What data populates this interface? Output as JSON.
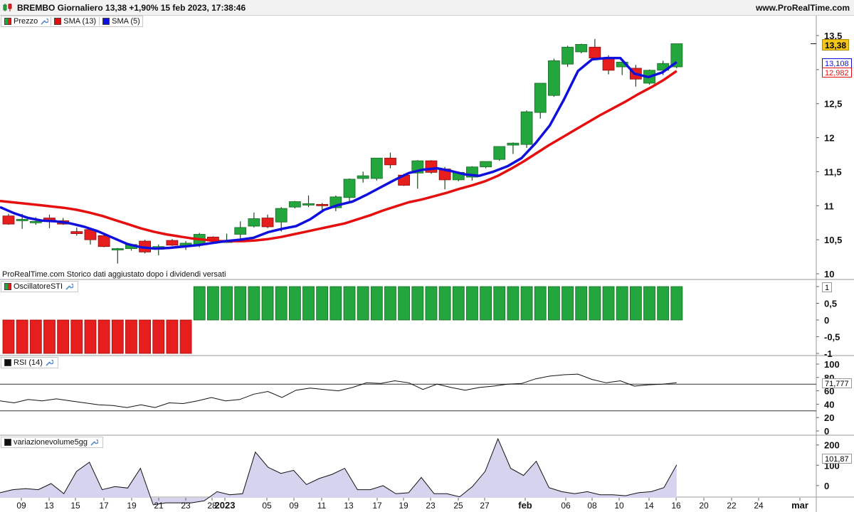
{
  "header": {
    "title": "BREMBO Giornaliero 13,38 +1,90% 15 feb 2023, 17:38:46",
    "site": "www.ProRealTime.com"
  },
  "note": "ProRealTime.com  Storico dati aggiustato dopo i dividendi versati",
  "legend": {
    "price": "Prezzo",
    "sma13": "SMA (13)",
    "sma5": "SMA (5)",
    "sti": "OscillatoreSTI",
    "rsi": "RSI (14)",
    "vol": "variazionevolume5gg"
  },
  "colors": {
    "up": "#22a63d",
    "down": "#e61e1e",
    "sma13": "#e60f0f",
    "sma5": "#1010dd",
    "wrench": "#5a8cc8"
  },
  "badges": {
    "last_price": "13,38",
    "sma5": "13,108",
    "sma13": "12,982",
    "sti": "1",
    "rsi": "71,777",
    "vol": "101,87"
  },
  "chart_data": [
    {
      "type": "candlestick",
      "title": "Prezzo",
      "ylim": [
        10,
        13.5
      ],
      "yticks": [
        "13,5",
        "13",
        "12,5",
        "12",
        "11,5",
        "11",
        "10,5",
        "10"
      ],
      "xticks": [
        "09",
        "13",
        "15",
        "17",
        "19",
        "21",
        "23",
        "28",
        "2023",
        "05",
        "09",
        "11",
        "13",
        "17",
        "19",
        "23",
        "25",
        "27",
        "feb",
        "06",
        "08",
        "10",
        "14",
        "16",
        "20",
        "22",
        "24",
        "mar"
      ],
      "candles": [
        {
          "o": 10.85,
          "h": 10.88,
          "l": 10.72,
          "c": 10.73
        },
        {
          "o": 10.78,
          "h": 10.88,
          "l": 10.66,
          "c": 10.8
        },
        {
          "o": 10.75,
          "h": 10.83,
          "l": 10.72,
          "c": 10.77
        },
        {
          "o": 10.82,
          "h": 10.87,
          "l": 10.67,
          "c": 10.78
        },
        {
          "o": 10.78,
          "h": 10.82,
          "l": 10.72,
          "c": 10.73
        },
        {
          "o": 10.62,
          "h": 10.68,
          "l": 10.56,
          "c": 10.59
        },
        {
          "o": 10.65,
          "h": 10.66,
          "l": 10.43,
          "c": 10.5
        },
        {
          "o": 10.56,
          "h": 10.58,
          "l": 10.39,
          "c": 10.4
        },
        {
          "o": 10.37,
          "h": 10.38,
          "l": 10.15,
          "c": 10.37
        },
        {
          "o": 10.37,
          "h": 10.44,
          "l": 10.34,
          "c": 10.43
        },
        {
          "o": 10.48,
          "h": 10.5,
          "l": 10.3,
          "c": 10.32
        },
        {
          "o": 10.36,
          "h": 10.43,
          "l": 10.27,
          "c": 10.4
        },
        {
          "o": 10.49,
          "h": 10.51,
          "l": 10.41,
          "c": 10.42
        },
        {
          "o": 10.4,
          "h": 10.48,
          "l": 10.35,
          "c": 10.45
        },
        {
          "o": 10.43,
          "h": 10.6,
          "l": 10.39,
          "c": 10.58
        },
        {
          "o": 10.54,
          "h": 10.55,
          "l": 10.47,
          "c": 10.48
        },
        {
          "o": 10.48,
          "h": 10.59,
          "l": 10.46,
          "c": 10.48
        },
        {
          "o": 10.58,
          "h": 10.77,
          "l": 10.51,
          "c": 10.68
        },
        {
          "o": 10.7,
          "h": 10.9,
          "l": 10.68,
          "c": 10.81
        },
        {
          "o": 10.82,
          "h": 10.87,
          "l": 10.67,
          "c": 10.69
        },
        {
          "o": 10.76,
          "h": 10.98,
          "l": 10.62,
          "c": 10.96
        },
        {
          "o": 10.98,
          "h": 11.07,
          "l": 10.96,
          "c": 11.06
        },
        {
          "o": 11.03,
          "h": 11.15,
          "l": 10.98,
          "c": 11.03
        },
        {
          "o": 11.02,
          "h": 11.04,
          "l": 10.94,
          "c": 11.0
        },
        {
          "o": 10.97,
          "h": 11.15,
          "l": 10.92,
          "c": 11.13
        },
        {
          "o": 11.12,
          "h": 11.4,
          "l": 11.05,
          "c": 11.39
        },
        {
          "o": 11.4,
          "h": 11.5,
          "l": 11.34,
          "c": 11.44
        },
        {
          "o": 11.4,
          "h": 11.7,
          "l": 11.37,
          "c": 11.7
        },
        {
          "o": 11.7,
          "h": 11.78,
          "l": 11.55,
          "c": 11.6
        },
        {
          "o": 11.45,
          "h": 11.47,
          "l": 11.29,
          "c": 11.3
        },
        {
          "o": 11.48,
          "h": 11.67,
          "l": 11.25,
          "c": 11.66
        },
        {
          "o": 11.66,
          "h": 11.67,
          "l": 11.47,
          "c": 11.49
        },
        {
          "o": 11.54,
          "h": 11.57,
          "l": 11.24,
          "c": 11.38
        },
        {
          "o": 11.38,
          "h": 11.5,
          "l": 11.36,
          "c": 11.49
        },
        {
          "o": 11.42,
          "h": 11.58,
          "l": 11.37,
          "c": 11.57
        },
        {
          "o": 11.57,
          "h": 11.65,
          "l": 11.55,
          "c": 11.65
        },
        {
          "o": 11.68,
          "h": 11.87,
          "l": 11.66,
          "c": 11.87
        },
        {
          "o": 11.89,
          "h": 11.93,
          "l": 11.76,
          "c": 11.92
        },
        {
          "o": 11.9,
          "h": 12.4,
          "l": 11.85,
          "c": 12.38
        },
        {
          "o": 12.37,
          "h": 12.8,
          "l": 12.28,
          "c": 12.8
        },
        {
          "o": 12.62,
          "h": 13.16,
          "l": 12.6,
          "c": 13.13
        },
        {
          "o": 13.08,
          "h": 13.35,
          "l": 13.04,
          "c": 13.33
        },
        {
          "o": 13.26,
          "h": 13.38,
          "l": 13.24,
          "c": 13.37
        },
        {
          "o": 13.33,
          "h": 13.45,
          "l": 13.15,
          "c": 13.17
        },
        {
          "o": 13.17,
          "h": 13.21,
          "l": 12.93,
          "c": 12.99
        },
        {
          "o": 13.04,
          "h": 13.11,
          "l": 12.92,
          "c": 13.11
        },
        {
          "o": 13.02,
          "h": 13.07,
          "l": 12.75,
          "c": 12.86
        },
        {
          "o": 12.8,
          "h": 13.0,
          "l": 12.78,
          "c": 12.99
        },
        {
          "o": 12.99,
          "h": 13.13,
          "l": 12.92,
          "c": 13.09
        },
        {
          "o": 13.04,
          "h": 13.38,
          "l": 13.02,
          "c": 13.38
        }
      ],
      "series": [
        {
          "name": "SMA (13)",
          "values": [
            11.07,
            11.05,
            11.03,
            11.01,
            10.99,
            10.97,
            10.94,
            10.9,
            10.85,
            10.79,
            10.73,
            10.67,
            10.62,
            10.58,
            10.55,
            10.52,
            10.5,
            10.48,
            10.48,
            10.48,
            10.49,
            10.51,
            10.54,
            10.58,
            10.62,
            10.66,
            10.7,
            10.74,
            10.8,
            10.86,
            10.93,
            10.99,
            11.05,
            11.09,
            11.14,
            11.19,
            11.25,
            11.3,
            11.36,
            11.44,
            11.54,
            11.65,
            11.77,
            11.89,
            12.0,
            12.11,
            12.22,
            12.33,
            12.43,
            12.53,
            12.64,
            12.74,
            12.85,
            12.98
          ]
        },
        {
          "name": "SMA (5)",
          "values": [
            10.98,
            10.89,
            10.82,
            10.78,
            10.77,
            10.74,
            10.69,
            10.62,
            10.53,
            10.44,
            10.39,
            10.37,
            10.38,
            10.4,
            10.42,
            10.45,
            10.48,
            10.5,
            10.53,
            10.61,
            10.66,
            10.7,
            10.8,
            10.94,
            11.01,
            11.06,
            11.16,
            11.27,
            11.38,
            11.48,
            11.53,
            11.55,
            11.51,
            11.46,
            11.44,
            11.5,
            11.58,
            11.7,
            11.92,
            12.18,
            12.56,
            12.98,
            13.15,
            13.17,
            13.17,
            12.94,
            12.89,
            12.96,
            13.11
          ]
        }
      ]
    },
    {
      "type": "bar",
      "title": "OscillatoreSTI",
      "ylim": [
        -1,
        1
      ],
      "yticks": [
        "1",
        "0,5",
        "0",
        "-0,5",
        "-1"
      ],
      "values": [
        -1,
        -1,
        -1,
        -1,
        -1,
        -1,
        -1,
        -1,
        -1,
        -1,
        -1,
        -1,
        -1,
        -1,
        1,
        1,
        1,
        1,
        1,
        1,
        1,
        1,
        1,
        1,
        1,
        1,
        1,
        1,
        1,
        1,
        1,
        1,
        1,
        1,
        1,
        1,
        1,
        1,
        1,
        1,
        1,
        1,
        1,
        1,
        1,
        1,
        1,
        1,
        1,
        1
      ]
    },
    {
      "type": "line",
      "title": "RSI (14)",
      "ylim": [
        0,
        100
      ],
      "yticks": [
        "100",
        "80",
        "60",
        "40",
        "20",
        "0"
      ],
      "levels": [
        70,
        30
      ],
      "values": [
        45,
        42,
        47,
        45,
        48,
        45,
        42,
        39,
        38,
        35,
        39,
        35,
        42,
        41,
        45,
        50,
        45,
        47,
        55,
        59,
        50,
        61,
        64,
        62,
        60,
        65,
        72,
        71,
        75,
        72,
        62,
        70,
        65,
        61,
        65,
        67,
        70,
        71,
        78,
        82,
        84,
        85,
        77,
        72,
        75,
        67,
        69,
        70,
        72
      ]
    },
    {
      "type": "area",
      "title": "variazionevolume5gg",
      "ylim": [
        -60,
        220
      ],
      "yticks": [
        "200",
        "100",
        "0"
      ],
      "values": [
        -35,
        -20,
        -15,
        -20,
        10,
        -40,
        70,
        115,
        -20,
        -5,
        -12,
        85,
        -95,
        -85,
        -85,
        -85,
        -75,
        -30,
        -45,
        -40,
        165,
        90,
        60,
        75,
        5,
        35,
        55,
        85,
        -20,
        -20,
        0,
        -40,
        -35,
        40,
        -40,
        -40,
        -55,
        -5,
        70,
        230,
        85,
        50,
        120,
        -10,
        -30,
        -40,
        -30,
        -45,
        -45,
        -50,
        -35,
        -30,
        -10,
        102
      ]
    }
  ]
}
